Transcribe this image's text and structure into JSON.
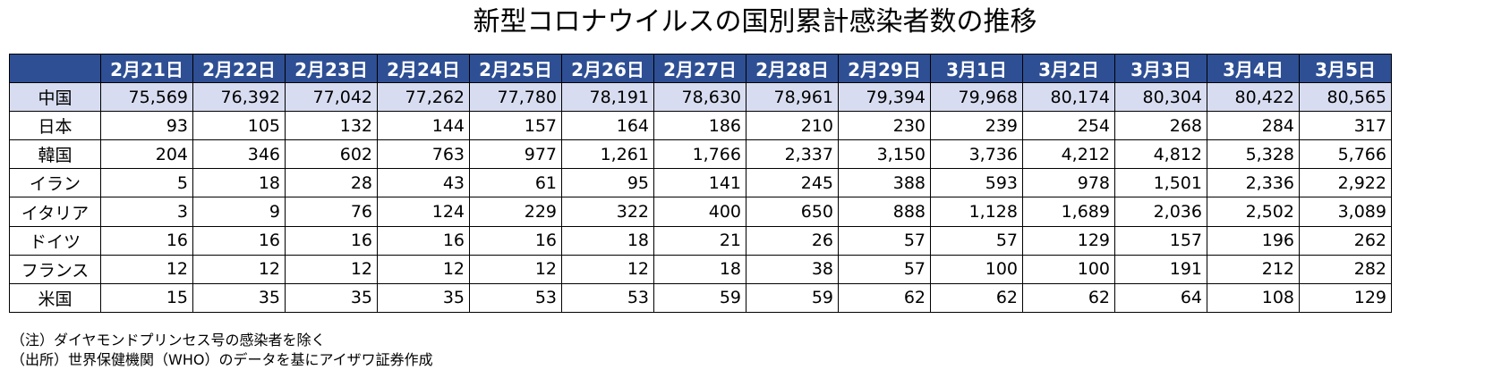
{
  "title": "新型コロナウイルスの国別累計感染者数の推移",
  "table": {
    "corner": "",
    "headers": [
      "2月21日",
      "2月22日",
      "2月23日",
      "2月24日",
      "2月25日",
      "2月26日",
      "2月27日",
      "2月28日",
      "2月29日",
      "3月1日",
      "3月2日",
      "3月3日",
      "3月4日",
      "3月5日"
    ],
    "rows": [
      {
        "country": "中国",
        "values": [
          "75,569",
          "76,392",
          "77,042",
          "77,262",
          "77,780",
          "78,191",
          "78,630",
          "78,961",
          "79,394",
          "79,968",
          "80,174",
          "80,304",
          "80,422",
          "80,565"
        ]
      },
      {
        "country": "日本",
        "values": [
          "93",
          "105",
          "132",
          "144",
          "157",
          "164",
          "186",
          "210",
          "230",
          "239",
          "254",
          "268",
          "284",
          "317"
        ]
      },
      {
        "country": "韓国",
        "values": [
          "204",
          "346",
          "602",
          "763",
          "977",
          "1,261",
          "1,766",
          "2,337",
          "3,150",
          "3,736",
          "4,212",
          "4,812",
          "5,328",
          "5,766"
        ]
      },
      {
        "country": "イラン",
        "values": [
          "5",
          "18",
          "28",
          "43",
          "61",
          "95",
          "141",
          "245",
          "388",
          "593",
          "978",
          "1,501",
          "2,336",
          "2,922"
        ]
      },
      {
        "country": "イタリア",
        "values": [
          "3",
          "9",
          "76",
          "124",
          "229",
          "322",
          "400",
          "650",
          "888",
          "1,128",
          "1,689",
          "2,036",
          "2,502",
          "3,089"
        ]
      },
      {
        "country": "ドイツ",
        "values": [
          "16",
          "16",
          "16",
          "16",
          "16",
          "18",
          "21",
          "26",
          "57",
          "57",
          "129",
          "157",
          "196",
          "262"
        ]
      },
      {
        "country": "フランス",
        "values": [
          "12",
          "12",
          "12",
          "12",
          "12",
          "12",
          "18",
          "38",
          "57",
          "100",
          "100",
          "191",
          "212",
          "282"
        ]
      },
      {
        "country": "米国",
        "values": [
          "15",
          "35",
          "35",
          "35",
          "53",
          "53",
          "59",
          "59",
          "62",
          "62",
          "62",
          "64",
          "108",
          "129"
        ]
      }
    ]
  },
  "notes": [
    "（注）ダイヤモンドプリンセス号の感染者を除く",
    "（出所）世界保健機関（WHO）のデータを基にアイザワ証券作成"
  ],
  "colors": {
    "header_bg": "#2e4f94",
    "header_text": "#ffffff",
    "highlight_row": "#d7dcf0"
  }
}
